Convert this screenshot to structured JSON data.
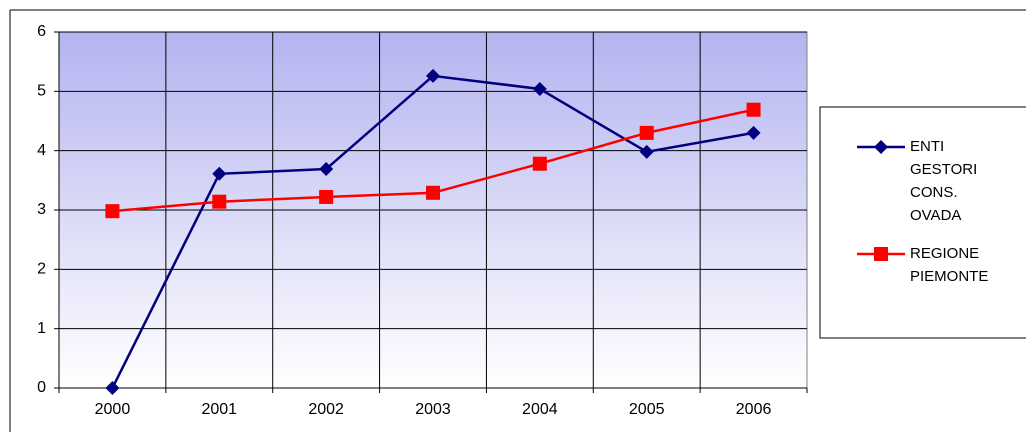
{
  "chart_data": {
    "type": "line",
    "categories": [
      "2000",
      "2001",
      "2002",
      "2003",
      "2004",
      "2005",
      "2006"
    ],
    "series": [
      {
        "name": "ENTI GESTORI CONS. OVADA",
        "color": "#000080",
        "marker": "diamond",
        "values": [
          0,
          3.61,
          3.69,
          5.26,
          5.04,
          3.98,
          4.3
        ]
      },
      {
        "name": "REGIONE PIEMONTE",
        "color": "#ff0000",
        "marker": "square",
        "values": [
          2.98,
          3.14,
          3.22,
          3.29,
          3.78,
          4.3,
          4.69
        ]
      }
    ],
    "ylim": [
      0,
      6
    ],
    "yticks": [
      0,
      1,
      2,
      3,
      4,
      5,
      6
    ],
    "grid": true,
    "legend": "right"
  }
}
